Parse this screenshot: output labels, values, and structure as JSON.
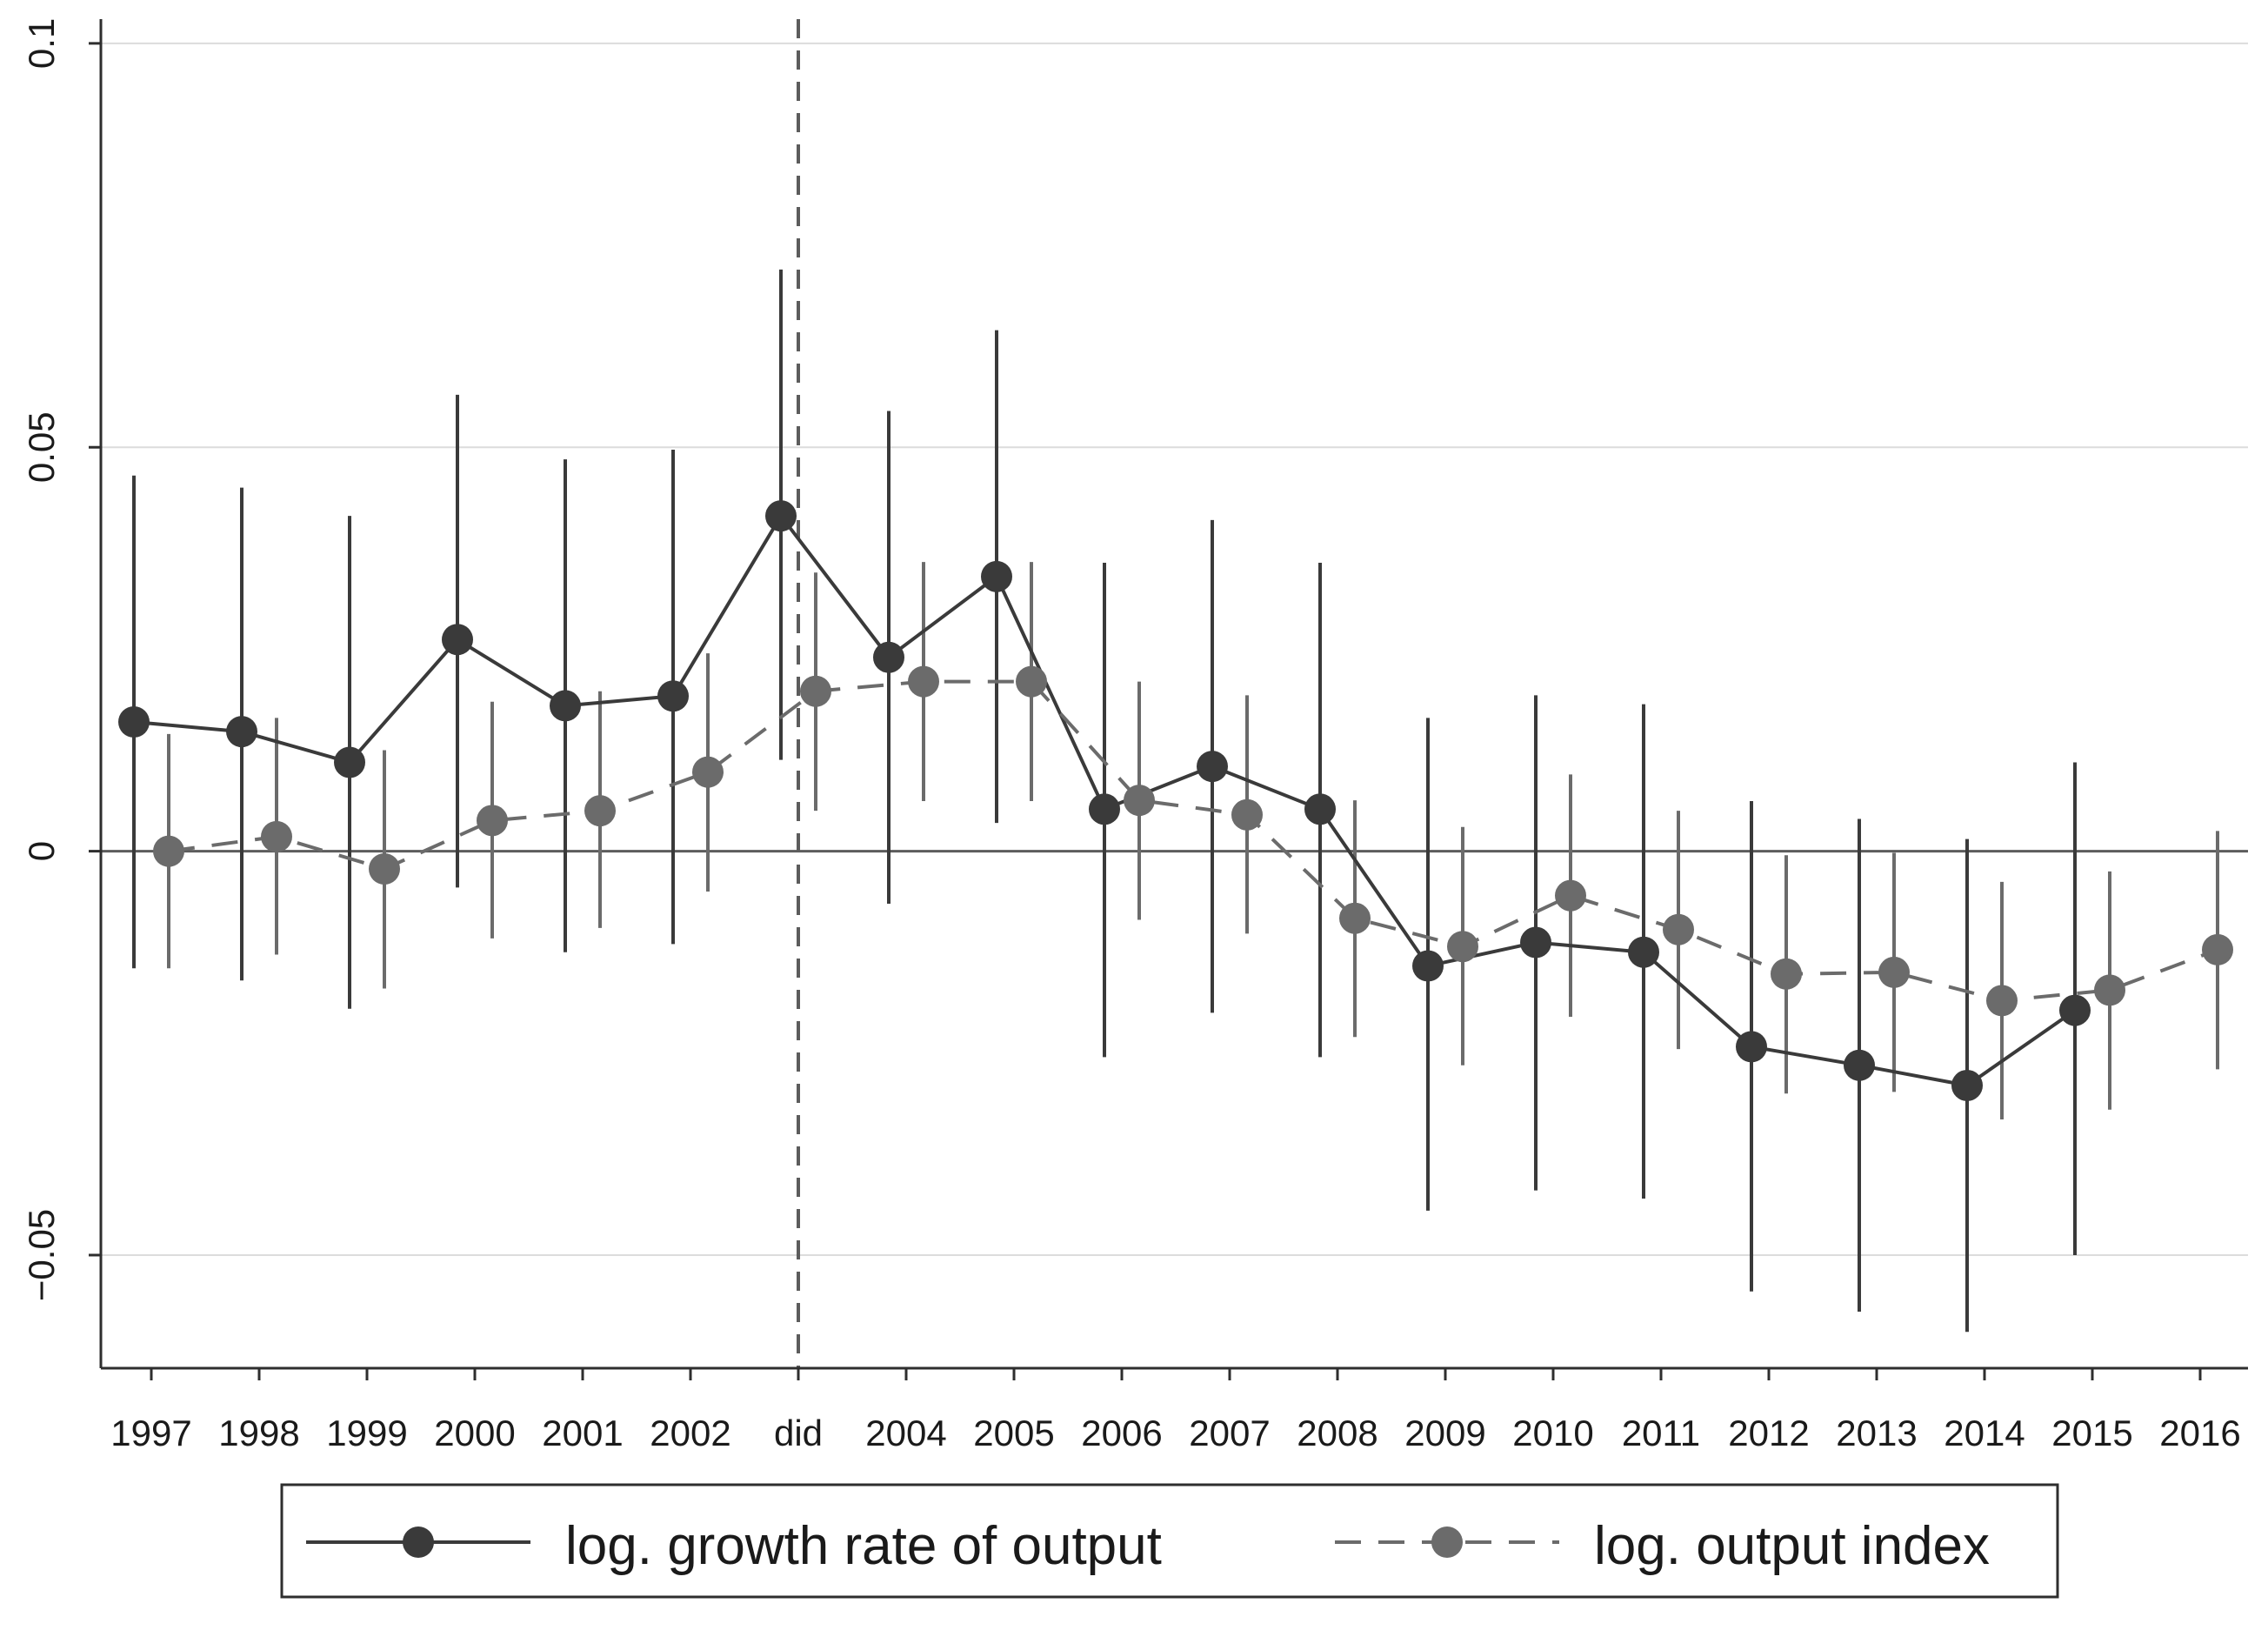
{
  "chart_data": {
    "type": "line",
    "title": "",
    "xlabel": "",
    "ylabel": "",
    "categories": [
      "1997",
      "1998",
      "1999",
      "2000",
      "2001",
      "2002",
      "did",
      "2004",
      "2005",
      "2006",
      "2007",
      "2008",
      "2009",
      "2010",
      "2011",
      "2012",
      "2013",
      "2014",
      "2015",
      "2016"
    ],
    "ylim": [
      -0.064,
      0.103
    ],
    "yticks": [
      {
        "value": 0.1,
        "label": "0.1"
      },
      {
        "value": 0.05,
        "label": "0.05"
      },
      {
        "value": 0,
        "label": "0"
      },
      {
        "value": -0.05,
        "label": "−0.05"
      }
    ],
    "grid": true,
    "reference_line_category": "did",
    "legend_position": "bottom",
    "series": [
      {
        "name": "log. growth rate of output",
        "style": "solid",
        "color": "#3a3a3a",
        "values": [
          0.016,
          0.0148,
          0.011,
          0.0262,
          0.018,
          0.0192,
          0.0415,
          0.024,
          0.034,
          0.0052,
          0.0105,
          0.0052,
          -0.0142,
          -0.0113,
          -0.0125,
          -0.0242,
          -0.0265,
          -0.029,
          -0.0197,
          null
        ],
        "ci_low": [
          -0.0145,
          -0.016,
          -0.0195,
          -0.0045,
          -0.0125,
          -0.0115,
          0.0113,
          -0.0065,
          0.0035,
          -0.0255,
          -0.02,
          -0.0255,
          -0.0445,
          -0.042,
          -0.043,
          -0.0545,
          -0.057,
          -0.0595,
          -0.05,
          null
        ],
        "ci_high": [
          0.0465,
          0.045,
          0.0415,
          0.0565,
          0.0485,
          0.0497,
          0.072,
          0.0545,
          0.0645,
          0.0357,
          0.041,
          0.0357,
          0.0165,
          0.0193,
          0.0182,
          0.0062,
          0.004,
          0.0015,
          0.011,
          null
        ]
      },
      {
        "name": "log. output index",
        "style": "dashed",
        "color": "#6b6b6b",
        "values": [
          0.0,
          0.0018,
          -0.0022,
          0.0038,
          0.005,
          0.0098,
          0.0198,
          0.021,
          0.021,
          0.0063,
          0.0045,
          -0.0083,
          -0.0118,
          -0.0055,
          -0.0097,
          -0.0152,
          -0.015,
          -0.0185,
          -0.0172,
          -0.0122
        ],
        "ci_low": [
          -0.0145,
          -0.0128,
          -0.017,
          -0.0108,
          -0.0095,
          -0.005,
          0.005,
          0.0062,
          0.0062,
          -0.0085,
          -0.0102,
          -0.023,
          -0.0265,
          -0.0205,
          -0.0245,
          -0.03,
          -0.0298,
          -0.0332,
          -0.032,
          -0.027
        ],
        "ci_high": [
          0.0145,
          0.0165,
          0.0125,
          0.0185,
          0.0198,
          0.0245,
          0.0345,
          0.0358,
          0.0358,
          0.021,
          0.0193,
          0.0063,
          0.003,
          0.0095,
          0.005,
          -0.0005,
          -0.0002,
          -0.0038,
          -0.0025,
          0.0025
        ]
      }
    ]
  },
  "colors": {
    "axis": "#2e2e2e",
    "grid": "#dcdcdc",
    "zero_line": "#5c5c5c",
    "reference_line": "#5c5c5c"
  }
}
